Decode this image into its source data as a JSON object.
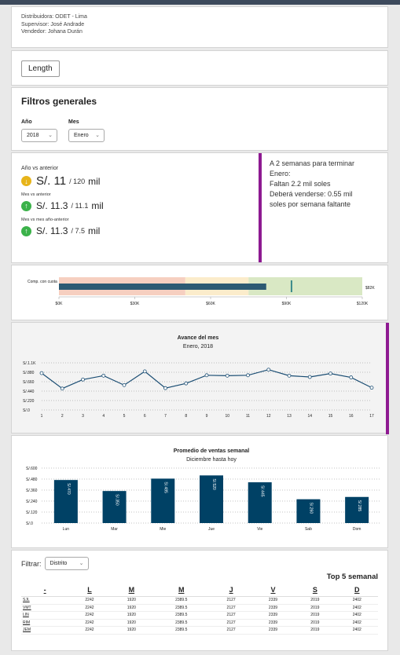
{
  "info": {
    "distribuidora": "Distribuidora: ODET - Lima",
    "supervisor": "Supervisor: José Andrade",
    "vendedor": "Vendedor: Johana Durán"
  },
  "length_button": "Length",
  "filtros": {
    "title": "Filtros generales",
    "year_label": "Año",
    "year_value": "2018",
    "month_label": "Mes",
    "month_value": "Enero"
  },
  "kpi": {
    "anio_label": "Año vs anterior",
    "anio_value": "S/. 11",
    "anio_target": "/ 120",
    "anio_unit": "mil",
    "mes_label": "Mes vs anterior",
    "mes_value": "S/. 11.3",
    "mes_target": "/ 11.1",
    "mes_unit": "mil",
    "mesanio_label": "Mes vs mes año-anterior",
    "mesanio_value": "S/. 11.3",
    "mesanio_target": "/ 7.5",
    "mesanio_unit": "mil",
    "status_color_warn": "#e7b41a",
    "status_color_ok": "#3bb24a",
    "message_line1": "A 2 semanas para terminar",
    "message_line2": "Enero:",
    "message_line3": "Faltan 2.2 mil soles",
    "message_line4": "Deberá venderse: 0.55 mil",
    "message_line5": "soles por semana faltante",
    "accent_color": "#8e1a91"
  },
  "chart_data": [
    {
      "type": "bullet",
      "category_label": "Comp. con cuota",
      "end_label": "$82K",
      "value": 82000,
      "marker": 92000,
      "bands": [
        {
          "from": 0,
          "to": 50000,
          "color": "#f6cfc0"
        },
        {
          "from": 50000,
          "to": 75000,
          "color": "#fbeccb"
        },
        {
          "from": 75000,
          "to": 120000,
          "color": "#d9e8c4"
        }
      ],
      "ticks": [
        "$0K",
        "$30K",
        "$60K",
        "$90K",
        "$120K"
      ],
      "xlim": [
        0,
        120000
      ],
      "bar_color": "#2c5a73"
    },
    {
      "type": "line",
      "title": "Avance del mes",
      "subtitle": "Enero, 2018",
      "x": [
        1,
        2,
        3,
        4,
        5,
        6,
        7,
        8,
        9,
        10,
        11,
        12,
        13,
        14,
        15,
        16,
        17
      ],
      "values": [
        860,
        500,
        710,
        800,
        580,
        900,
        510,
        620,
        810,
        800,
        810,
        940,
        800,
        770,
        850,
        760,
        520
      ],
      "y_ticks": [
        "S/.1.1K",
        "S/.880",
        "S/.660",
        "S/.440",
        "S/.220",
        "S/.0"
      ],
      "ylim": [
        0,
        1100
      ],
      "line_color": "#1a4d73",
      "grid": "dotted"
    },
    {
      "type": "bar",
      "title": "Promedio de ventas semanal",
      "subtitle": "Diciembre hasta hoy",
      "categories": [
        "Lun",
        "Mar",
        "Mie",
        "Jue",
        "Vie",
        "Sab",
        "Dom"
      ],
      "values": [
        470,
        350,
        485,
        520,
        445,
        260,
        285
      ],
      "value_labels": [
        "S/.470",
        "S/.350",
        "S/.485",
        "S/.520",
        "S/.445",
        "S/.260",
        "S/.285"
      ],
      "y_ticks": [
        "S/.600",
        "S/.480",
        "S/.360",
        "S/.240",
        "S/.120",
        "S/.0"
      ],
      "ylim": [
        0,
        600
      ],
      "bar_color": "#004165"
    }
  ],
  "table": {
    "filter_label": "Filtrar:",
    "filter_value": "Distrito",
    "title": "Top 5 semanal",
    "headers": [
      "-",
      "L",
      "M",
      "M",
      "J",
      "V",
      "S",
      "D"
    ],
    "rows": [
      [
        "SJL",
        "2242",
        "1920",
        "2389.5",
        "2127",
        "2339",
        "2019",
        "2402"
      ],
      [
        "VMT",
        "2242",
        "1920",
        "2389.5",
        "2127",
        "2339",
        "2019",
        "2402"
      ],
      [
        "LIN",
        "2242",
        "1920",
        "2389.5",
        "2127",
        "2339",
        "2019",
        "2402"
      ],
      [
        "RIM",
        "2242",
        "1920",
        "2389.5",
        "2127",
        "2339",
        "2019",
        "2402"
      ],
      [
        "JEM",
        "2242",
        "1920",
        "2389.5",
        "2127",
        "2339",
        "2019",
        "2402"
      ]
    ]
  }
}
